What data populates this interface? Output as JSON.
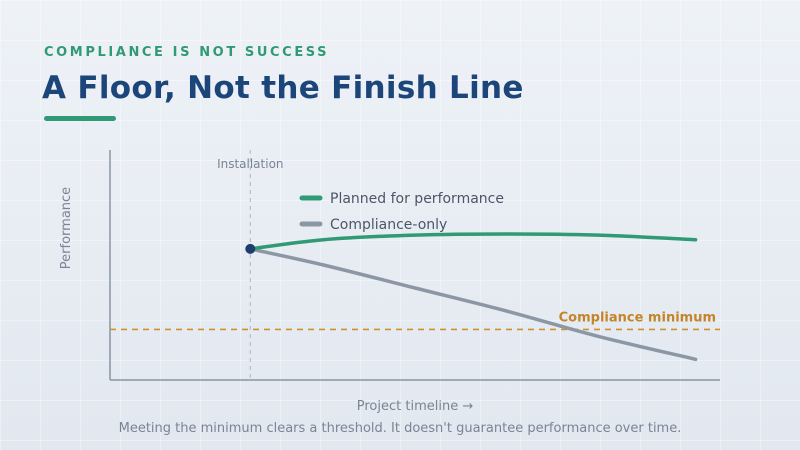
{
  "header": {
    "eyebrow": "COMPLIANCE IS NOT SUCCESS",
    "title": "A Floor, Not the Finish Line"
  },
  "caption": "Meeting the minimum clears a threshold. It doesn't guarantee performance over time.",
  "colors": {
    "accent_green": "#2f9a74",
    "title_navy": "#1c4679",
    "gray_series": "#8c97a5",
    "threshold_orange": "#d38f2a",
    "marker_navy": "#1c3f6e"
  },
  "chart_data": {
    "type": "line",
    "xlabel": "Project timeline →",
    "ylabel": "Performance",
    "xlim": [
      0,
      10
    ],
    "ylim": [
      0,
      10
    ],
    "grid": false,
    "legend_placement": "top-left",
    "series": [
      {
        "name": "Planned for performance",
        "color": "#2f9a74",
        "x": [
          2.3,
          3.5,
          5,
          6.5,
          8,
          9.6
        ],
        "y": [
          5.7,
          6.1,
          6.3,
          6.35,
          6.3,
          6.1
        ]
      },
      {
        "name": "Compliance-only",
        "color": "#8c97a5",
        "x": [
          2.3,
          3.5,
          5,
          6.5,
          8,
          9.6
        ],
        "y": [
          5.7,
          5.0,
          4.0,
          3.0,
          1.9,
          0.9
        ]
      }
    ],
    "annotations": [
      {
        "type": "vline",
        "x": 2.3,
        "label": "Installation"
      },
      {
        "type": "hline",
        "y": 2.2,
        "label": "Compliance minimum"
      },
      {
        "type": "point",
        "x": 2.3,
        "y": 5.7
      }
    ]
  }
}
